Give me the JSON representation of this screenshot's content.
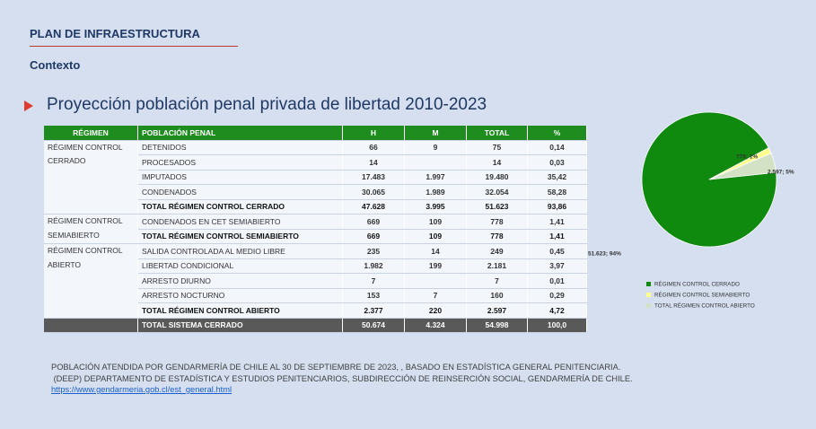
{
  "header": {
    "title": "PLAN DE INFRAESTRUCTURA",
    "section": "Contexto"
  },
  "title": "Proyección población penal privada de libertad 2010-2023",
  "table": {
    "columns": [
      "RÉGIMEN",
      "POBLACIÓN PENAL",
      "H",
      "M",
      "TOTAL",
      "%"
    ],
    "groups": [
      {
        "regimen": "RÉGIMEN CONTROL CERRADO",
        "rows": [
          [
            "DETENIDOS",
            "66",
            "9",
            "75",
            "0,14"
          ],
          [
            "PROCESADOS",
            "14",
            null,
            "14",
            "0,03"
          ],
          [
            "IMPUTADOS",
            "17.483",
            "1.997",
            "19.480",
            "35,42"
          ],
          [
            "CONDENADOS",
            "30.065",
            "1.989",
            "32.054",
            "58,28"
          ],
          [
            "TOTAL RÉGIMEN CONTROL CERRADO",
            "47.628",
            "3.995",
            "51.623",
            "93,86"
          ]
        ]
      },
      {
        "regimen": "RÉGIMEN CONTROL SEMIABIERTO",
        "rows": [
          [
            "CONDENADOS EN CET SEMIABIERTO",
            "669",
            "109",
            "778",
            "1,41"
          ],
          [
            "TOTAL RÉGIMEN CONTROL SEMIABIERTO",
            "669",
            "109",
            "778",
            "1,41"
          ]
        ]
      },
      {
        "regimen": "RÉGIMEN CONTROL ABIERTO",
        "rows": [
          [
            "SALIDA CONTROLADA AL MEDIO LIBRE",
            "235",
            "14",
            "249",
            "0,45"
          ],
          [
            "LIBERTAD CONDICIONAL",
            "1.982",
            "199",
            "2.181",
            "3,97"
          ],
          [
            "ARRESTO DIURNO",
            "7",
            null,
            "7",
            "0,01"
          ],
          [
            "ARRESTO NOCTURNO",
            "153",
            "7",
            "160",
            "0,29"
          ],
          [
            "TOTAL RÉGIMEN CONTROL ABIERTO",
            "2.377",
            "220",
            "2.597",
            "4,72"
          ]
        ]
      }
    ],
    "total": [
      "TOTAL SISTEMA CERRADO",
      "50.674",
      "4.324",
      "54.998",
      "100,0"
    ]
  },
  "chart_data": {
    "type": "pie",
    "categories": [
      "RÉGIMEN CONTROL CERRADO",
      "RÉGIMEN CONTROL SEMIABIERTO",
      "TOTAL RÉGIMEN CONTROL ABIERTO"
    ],
    "values": [
      51623,
      778,
      2597
    ],
    "value_labels": [
      "51.623; 94%",
      "778; 1%",
      "2.597; 5%"
    ],
    "colors": [
      "#0f8a0f",
      "#ffff8c",
      "#d3e2c4"
    ]
  },
  "footnote": {
    "lines": [
      "POBLACIÓN ATENDIDA POR GENDARMERÍA DE CHILE AL 30 DE SEPTIEMBRE DE 2023, , BASADO EN ESTADÍSTICA GENERAL PENITENCIARIA.",
      " (DEEP) DEPARTAMENTO DE ESTADÍSTICA Y ESTUDIOS PENITENCIARIOS, SUBDIRECCIÓN DE REINSERCIÓN SOCIAL, GENDARMERÍA DE CHILE."
    ],
    "link": "https://www.gendarmeria.gob.cl/est_general.html"
  }
}
